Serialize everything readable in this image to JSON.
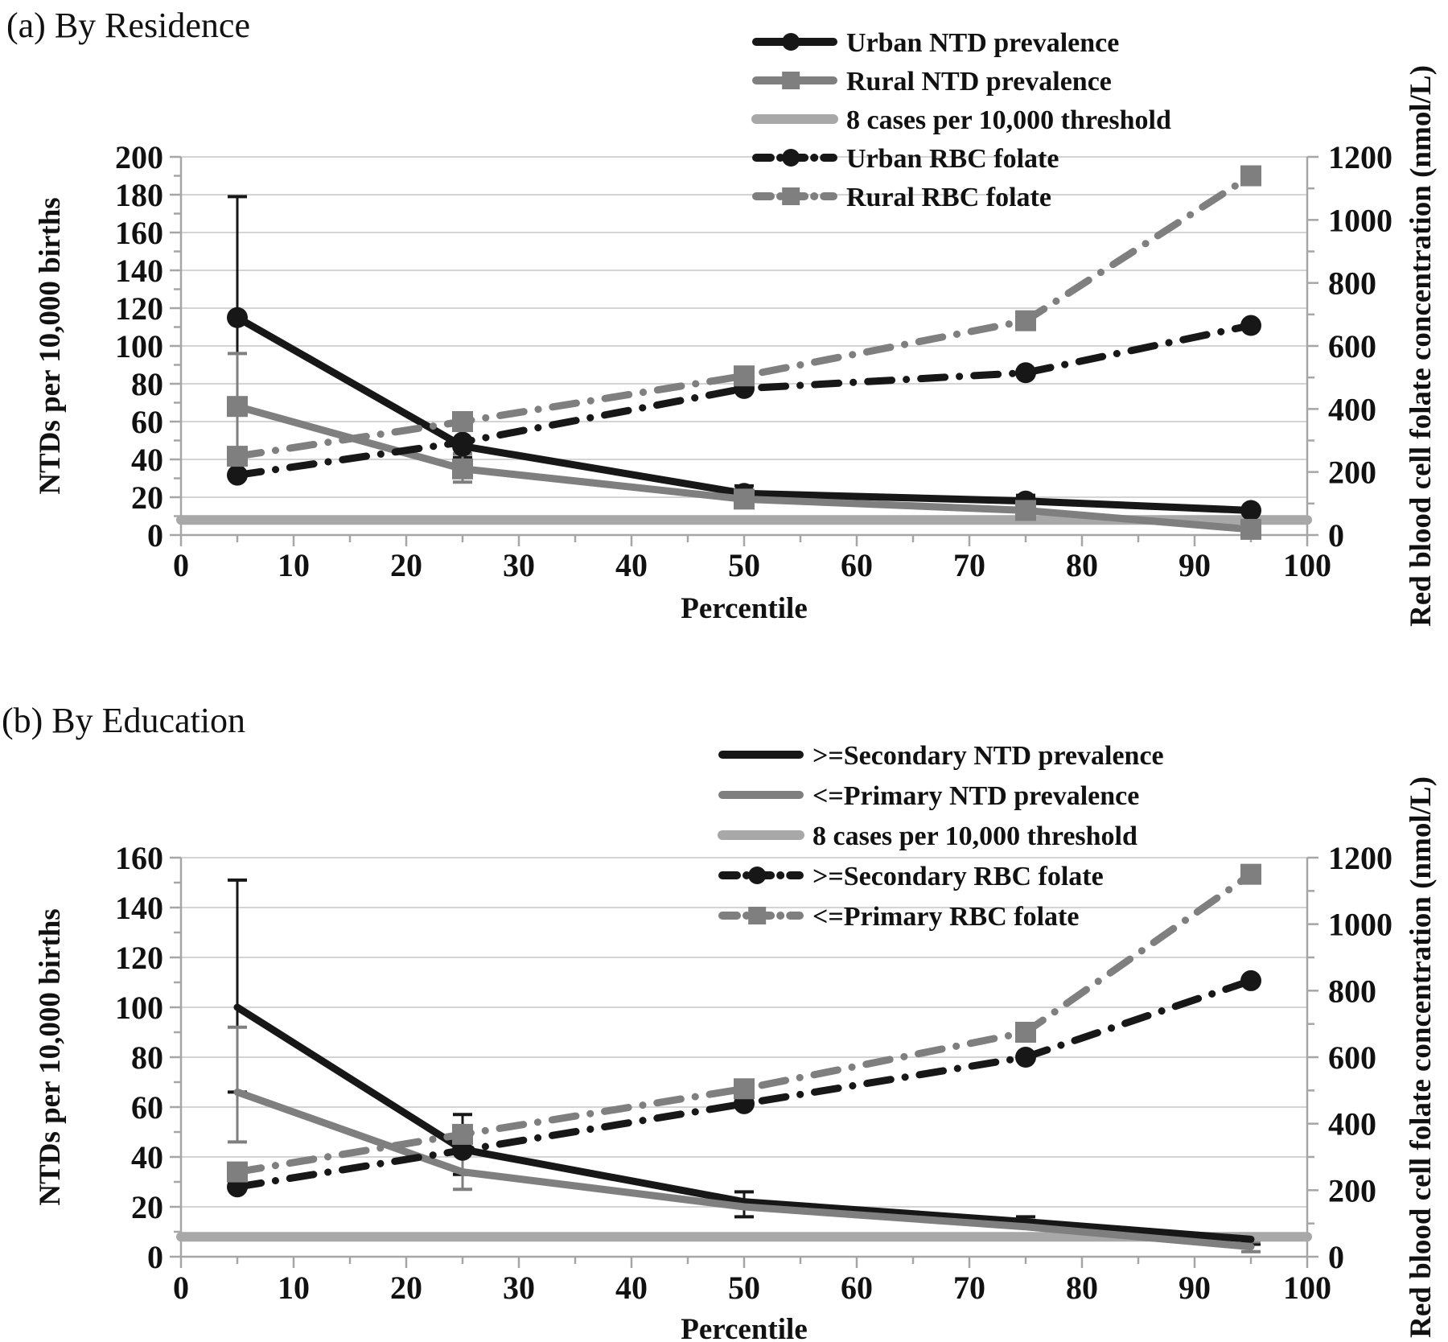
{
  "colors": {
    "black": "#171717",
    "gray": "#7f7f7f",
    "light_gray": "#a8a8a8",
    "grid": "#d4d4d4",
    "axis": "#a6a6a6",
    "text": "#111111"
  },
  "chart_data": [
    {
      "type": "line",
      "title": "(a) By Residence",
      "xlabel": "Percentile",
      "ylabel_left": "NTDs per 10,000 births",
      "ylabel_right": "Red blood cell folate concentration (nmol/L)",
      "x": [
        5,
        25,
        50,
        75,
        95
      ],
      "xlim": [
        0,
        100
      ],
      "x_major_step": 10,
      "x_minor_step": 5,
      "ylim_left": [
        0,
        200
      ],
      "y_left_major_step": 20,
      "y_left_minor_step": 10,
      "ylim_right": [
        0,
        1200
      ],
      "y_right_major_step": 200,
      "y_right_minor_step": 100,
      "grid": "horizontal",
      "legend_position": "top-right",
      "series": [
        {
          "name": "Urban NTD prevalence",
          "axis": "left",
          "line": "solid",
          "color": "black",
          "marker": "circle",
          "legend_marker": true,
          "values": [
            115,
            47,
            22,
            18,
            13
          ],
          "error_low": [
            72,
            41,
            19,
            15,
            null
          ],
          "error_high": [
            179,
            58,
            26,
            21,
            null
          ]
        },
        {
          "name": "Rural NTD prevalence",
          "axis": "left",
          "line": "solid",
          "color": "gray",
          "marker": "square",
          "legend_marker": true,
          "values": [
            68,
            35,
            19,
            13,
            3
          ],
          "error_low": [
            46,
            28,
            16,
            11,
            null
          ],
          "error_high": [
            96,
            43,
            22,
            16,
            null
          ]
        },
        {
          "name": "8 cases per 10,000 threshold",
          "axis": "left",
          "line": "solid",
          "color": "light_gray",
          "marker": "none",
          "legend_marker": false,
          "x": [
            0,
            100
          ],
          "values": [
            8,
            8
          ],
          "thick": true
        },
        {
          "name": "Urban RBC folate",
          "axis": "right",
          "line": "dashdot",
          "color": "black",
          "marker": "circle",
          "legend_marker": true,
          "values": [
            190,
            295,
            465,
            515,
            665
          ]
        },
        {
          "name": "Rural RBC folate",
          "axis": "right",
          "line": "dashdot",
          "color": "gray",
          "marker": "square",
          "legend_marker": true,
          "values": [
            250,
            360,
            505,
            680,
            1140
          ]
        }
      ]
    },
    {
      "type": "line",
      "title": "(b) By Education",
      "xlabel": "Percentile",
      "ylabel_left": "NTDs per 10,000 births",
      "ylabel_right": "Red blood cell folate concentration (nmol/L)",
      "x": [
        5,
        25,
        50,
        75,
        95
      ],
      "xlim": [
        0,
        100
      ],
      "x_major_step": 10,
      "x_minor_step": 5,
      "ylim_left": [
        0,
        160
      ],
      "y_left_major_step": 20,
      "y_left_minor_step": 10,
      "ylim_right": [
        0,
        1200
      ],
      "y_right_major_step": 200,
      "y_right_minor_step": 100,
      "grid": "horizontal",
      "legend_position": "top-right",
      "series": [
        {
          "name": ">=Secondary NTD prevalence",
          "axis": "left",
          "line": "solid",
          "color": "black",
          "marker": "none",
          "legend_marker": false,
          "values": [
            100,
            43,
            22,
            14,
            7
          ],
          "error_low": [
            66,
            33,
            16,
            12,
            5
          ],
          "error_high": [
            151,
            57,
            26,
            16,
            9
          ]
        },
        {
          "name": "<=Primary NTD prevalence",
          "axis": "left",
          "line": "solid",
          "color": "gray",
          "marker": "none",
          "legend_marker": false,
          "values": [
            66,
            34,
            20,
            12,
            4
          ],
          "error_low": [
            46,
            27,
            null,
            null,
            2
          ],
          "error_high": [
            92,
            42,
            null,
            null,
            6
          ]
        },
        {
          "name": "8 cases per 10,000 threshold",
          "axis": "left",
          "line": "solid",
          "color": "light_gray",
          "marker": "none",
          "legend_marker": false,
          "x": [
            0,
            100
          ],
          "values": [
            8,
            8
          ],
          "thick": true
        },
        {
          "name": ">=Secondary RBC folate",
          "axis": "right",
          "line": "dashdot",
          "color": "black",
          "marker": "circle",
          "legend_marker": true,
          "values": [
            210,
            320,
            460,
            600,
            830
          ]
        },
        {
          "name": "<=Primary RBC folate",
          "axis": "right",
          "line": "dashdot",
          "color": "gray",
          "marker": "square",
          "legend_marker": true,
          "values": [
            255,
            368,
            505,
            675,
            1150
          ]
        }
      ]
    }
  ]
}
